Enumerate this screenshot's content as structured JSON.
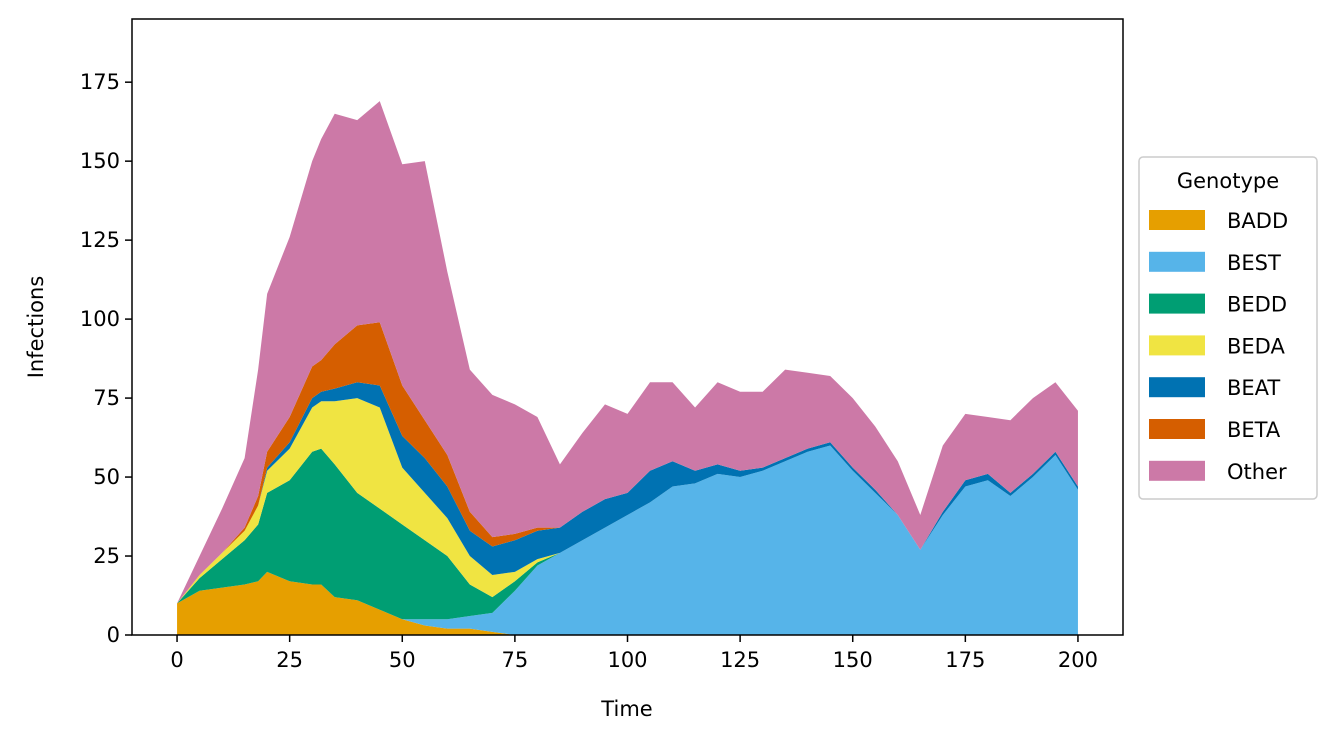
{
  "chart_data": {
    "type": "area",
    "stacked": true,
    "xlabel": "Time",
    "ylabel": "Infections",
    "xlim": [
      -10,
      210
    ],
    "ylim": [
      0,
      195
    ],
    "xticks": [
      0,
      25,
      50,
      75,
      100,
      125,
      150,
      175,
      200
    ],
    "yticks": [
      0,
      25,
      50,
      75,
      100,
      125,
      150,
      175
    ],
    "legend": {
      "title": "Genotype",
      "position": "right-outside"
    },
    "x": [
      0,
      5,
      10,
      15,
      18,
      20,
      25,
      30,
      32,
      35,
      40,
      45,
      50,
      55,
      60,
      65,
      70,
      75,
      80,
      85,
      90,
      95,
      100,
      105,
      110,
      115,
      120,
      125,
      130,
      135,
      140,
      145,
      150,
      155,
      160,
      165,
      170,
      175,
      180,
      185,
      190,
      195,
      200
    ],
    "series": [
      {
        "name": "BADD",
        "color": "#E69F00",
        "values": [
          10,
          14,
          15,
          16,
          17,
          20,
          17,
          16,
          16,
          12,
          11,
          8,
          5,
          3,
          2,
          2,
          1,
          0,
          0,
          0,
          0,
          0,
          0,
          0,
          0,
          0,
          0,
          0,
          0,
          0,
          0,
          0,
          0,
          0,
          0,
          0,
          0,
          0,
          0,
          0,
          0,
          0,
          0
        ]
      },
      {
        "name": "BEST",
        "color": "#56B4E9",
        "values": [
          0,
          0,
          0,
          0,
          0,
          0,
          0,
          0,
          0,
          0,
          0,
          0,
          0,
          2,
          3,
          4,
          6,
          14,
          22,
          26,
          30,
          34,
          38,
          42,
          47,
          48,
          51,
          50,
          52,
          55,
          58,
          60,
          52,
          45,
          38,
          27,
          38,
          47,
          49,
          44,
          50,
          57,
          46
        ]
      },
      {
        "name": "BEDD",
        "color": "#009E73",
        "values": [
          0,
          4,
          9,
          14,
          18,
          25,
          32,
          42,
          43,
          42,
          34,
          32,
          30,
          25,
          20,
          10,
          5,
          3,
          1,
          0,
          0,
          0,
          0,
          0,
          0,
          0,
          0,
          0,
          0,
          0,
          0,
          0,
          0,
          0,
          0,
          0,
          0,
          0,
          0,
          0,
          0,
          0,
          0
        ]
      },
      {
        "name": "BEDA",
        "color": "#F0E442",
        "values": [
          0,
          1,
          2,
          3,
          6,
          7,
          10,
          14,
          15,
          20,
          30,
          32,
          18,
          15,
          12,
          9,
          7,
          3,
          1,
          0,
          0,
          0,
          0,
          0,
          0,
          0,
          0,
          0,
          0,
          0,
          0,
          0,
          0,
          0,
          0,
          0,
          0,
          0,
          0,
          0,
          0,
          0,
          0
        ]
      },
      {
        "name": "BEAT",
        "color": "#0072B2",
        "values": [
          0,
          0,
          0,
          0,
          0,
          1,
          2,
          3,
          3,
          4,
          5,
          7,
          10,
          11,
          10,
          8,
          9,
          10,
          9,
          8,
          9,
          9,
          7,
          10,
          8,
          4,
          3,
          2,
          1,
          1,
          1,
          1,
          1,
          1,
          0,
          0,
          1,
          2,
          2,
          1,
          1,
          1,
          1
        ]
      },
      {
        "name": "BETA",
        "color": "#D55E00",
        "values": [
          0,
          0,
          0,
          1,
          3,
          5,
          8,
          10,
          10,
          14,
          18,
          20,
          16,
          12,
          10,
          6,
          3,
          2,
          1,
          0,
          0,
          0,
          0,
          0,
          0,
          0,
          0,
          0,
          0,
          0,
          0,
          0,
          0,
          0,
          0,
          0,
          0,
          0,
          0,
          0,
          0,
          0,
          0
        ]
      },
      {
        "name": "Other",
        "color": "#CC79A7",
        "values": [
          0,
          6,
          14,
          22,
          40,
          50,
          57,
          65,
          70,
          73,
          65,
          70,
          70,
          82,
          58,
          45,
          45,
          41,
          35,
          20,
          25,
          30,
          25,
          28,
          25,
          20,
          26,
          25,
          24,
          28,
          24,
          21,
          22,
          20,
          17,
          11,
          21,
          21,
          18,
          23,
          24,
          22,
          24
        ]
      }
    ]
  }
}
